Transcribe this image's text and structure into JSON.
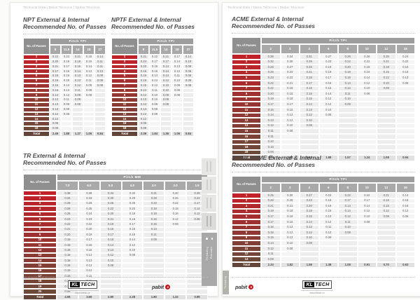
{
  "page_header": "Technical Data | Datos Técnicos | Dados Técnicos",
  "colors": {
    "accent_red": "#c12129",
    "gradient_start": "#c12129",
    "gradient_end": "#6d493a",
    "total_bg": "#624538",
    "header_gray": "#9d9d9d",
    "tab_gray": "#a8a8a8"
  },
  "side_tabs": {
    "label_en": "Threading",
    "label_es": "Roscado"
  },
  "footer": {
    "kl_box": "KL",
    "kl_word": "TECH",
    "kl_url": "www.kltech.cz",
    "pabit": "pabit",
    "pabit_mark": "e"
  },
  "tables": {
    "npt": {
      "title1": "NPT External & Internal",
      "title2": "Recommended No. of Passes",
      "band": "Pitch TPI",
      "passes_label": "No. of Passes",
      "total_label": "Total",
      "columns": [
        "8",
        "11.5",
        "14",
        "18",
        "27"
      ],
      "rows": [
        [
          "0.22",
          "0.23",
          "0.21",
          "0.18",
          "0.14"
        ],
        [
          "0.20",
          "0.19",
          "0.18",
          "0.15",
          "0.11"
        ],
        [
          "0.21",
          "0.17",
          "0.15",
          "0.13",
          "0.11"
        ],
        [
          "0.17",
          "0.16",
          "0.14",
          "0.13",
          "0.13"
        ],
        [
          "0.18",
          "0.15",
          "0.13",
          "0.12",
          "0.09"
        ],
        [
          "0.16",
          "0.15",
          "0.13",
          "0.11",
          "0.08"
        ],
        [
          "0.15",
          "0.13",
          "0.12",
          "0.09",
          "0.08"
        ],
        [
          "0.16",
          "0.13",
          "0.11",
          "0.09"
        ],
        [
          "0.14",
          "0.12",
          "0.09",
          "0.08"
        ],
        [
          "0.13",
          "0.11",
          "0.09"
        ],
        [
          "0.13",
          "0.09",
          "0.08"
        ],
        [
          "0.13",
          "0.08"
        ],
        [
          "0.12",
          "0.08"
        ],
        [
          "0.12"
        ],
        [
          "0.08"
        ],
        [
          "0.08"
        ]
      ],
      "totals": [
        "2.45",
        "1.88",
        "1.37",
        "1.05",
        "0.84"
      ]
    },
    "nptf": {
      "title1": "NPTF External & Internal",
      "title2": "Recommended No. of Passes",
      "band": "Pitch TPI",
      "passes_label": "No. of Passes",
      "total_label": "Total",
      "columns": [
        "8",
        "11.5",
        "14",
        "18",
        "27"
      ],
      "rows": [
        [
          "0.31",
          "0.22",
          "0.21",
          "0.17",
          "0.14"
        ],
        [
          "0.24",
          "0.17",
          "0.17",
          "0.14",
          "0.10"
        ],
        [
          "0.20",
          "0.16",
          "0.14",
          "0.13",
          "0.09"
        ],
        [
          "0.16",
          "0.16",
          "0.14",
          "0.12",
          "0.08"
        ],
        [
          "0.16",
          "0.14",
          "0.14",
          "0.11",
          "0.08"
        ],
        [
          "0.15",
          "0.13",
          "0.12",
          "0.10",
          "0.08"
        ],
        [
          "0.15",
          "0.12",
          "0.10",
          "0.09",
          "0.08"
        ],
        [
          "0.14",
          "0.11",
          "0.10",
          "0.08"
        ],
        [
          "0.14",
          "0.10",
          "0.09",
          "0.08"
        ],
        [
          "0.13",
          "0.10",
          "0.08"
        ],
        [
          "0.13",
          "0.09",
          "0.08"
        ],
        [
          "0.13",
          "0.08"
        ],
        [
          "0.12",
          "0.08"
        ],
        [
          "0.12"
        ],
        [
          "0.08"
        ],
        [
          "0.08"
        ]
      ],
      "totals": [
        "2.39",
        "1.84",
        "1.36",
        "1.05",
        "0.84"
      ]
    },
    "acme": {
      "title1": "ACME External & Internal",
      "title2": "Recommended No. of Passes",
      "band": "Pitch TPI",
      "passes_label": "No. of Passes",
      "total_label": "Total",
      "columns": [
        "2",
        "3",
        "4",
        "6",
        "8",
        "10",
        "12",
        "16"
      ],
      "rows": [
        [
          "0.36",
          "0.34",
          "0.31",
          "0.27",
          "0.26",
          "0.26",
          "0.25",
          "0.24"
        ],
        [
          "0.32",
          "0.30",
          "0.29",
          "0.23",
          "0.22",
          "0.22",
          "0.21",
          "0.22"
        ],
        [
          "0.28",
          "0.27",
          "0.25",
          "0.19",
          "0.20",
          "0.18",
          "0.18",
          "0.15"
        ],
        [
          "0.25",
          "0.23",
          "0.21",
          "0.18",
          "0.19",
          "0.16",
          "0.15",
          "0.15"
        ],
        [
          "0.23",
          "0.22",
          "0.18",
          "0.17",
          "0.16",
          "0.14",
          "0.12",
          "0.12"
        ],
        [
          "0.22",
          "0.21",
          "0.17",
          "0.16",
          "0.14",
          "0.12",
          "0.10",
          "0.06"
        ],
        [
          "0.22",
          "0.18",
          "0.16",
          "0.15",
          "0.12",
          "0.10",
          "0.08"
        ],
        [
          "0.20",
          "0.18",
          "0.15",
          "0.14",
          "0.11",
          "0.08"
        ],
        [
          "0.19",
          "0.18",
          "0.15",
          "0.12",
          "0.10"
        ],
        [
          "0.17",
          "0.17",
          "0.14",
          "0.12",
          "0.08"
        ],
        [
          "0.15",
          "0.15",
          "0.13",
          "0.10"
        ],
        [
          "0.14",
          "0.13",
          "0.12",
          "0.08"
        ],
        [
          "0.13",
          "0.12",
          "0.10"
        ],
        [
          "0.12",
          "0.10",
          "0.08"
        ],
        [
          "0.11",
          "0.08"
        ],
        [
          "0.11"
        ],
        [
          "0.10"
        ],
        [
          "0.10"
        ],
        [
          "0.08"
        ]
      ],
      "totals": [
        "3.46",
        "2.84",
        "2.42",
        "1.88",
        "1.57",
        "1.24",
        "1.08",
        "0.94"
      ]
    },
    "tr": {
      "title1": "TR External & Internal",
      "title2": "Recommended No. of Passes",
      "band": "Pitch MM",
      "passes_label": "No. of Passes",
      "total_label": "Total",
      "columns": [
        "7.0",
        "6.0",
        "5.0",
        "4.0",
        "3.0",
        "2.0",
        "1.5"
      ],
      "rows": [
        [
          "0.38",
          "0.38",
          "0.34",
          "0.32",
          "0.31",
          "0.30",
          "0.28"
        ],
        [
          "0.34",
          "0.33",
          "0.30",
          "0.28",
          "0.28",
          "0.26",
          "0.22"
        ],
        [
          "0.29",
          "0.28",
          "0.25",
          "0.25",
          "0.23",
          "0.22",
          "0.17"
        ],
        [
          "0.28",
          "0.26",
          "0.22",
          "0.20",
          "0.18",
          "0.18",
          "0.14"
        ],
        [
          "0.25",
          "0.24",
          "0.20",
          "0.18",
          "0.18",
          "0.16",
          "0.12"
        ],
        [
          "0.23",
          "0.23",
          "0.21",
          "0.16",
          "0.16",
          "0.12",
          "0.06"
        ],
        [
          "0.22",
          "0.22",
          "0.19",
          "0.17",
          "0.16",
          "0.08"
        ],
        [
          "0.21",
          "0.20",
          "0.16",
          "0.16",
          "0.13"
        ],
        [
          "0.20",
          "0.19",
          "0.17",
          "0.15",
          "0.11"
        ],
        [
          "0.19",
          "0.17",
          "0.16",
          "0.14",
          "0.08"
        ],
        [
          "0.19",
          "0.16",
          "0.14",
          "0.12"
        ],
        [
          "0.18",
          "0.15",
          "0.13",
          "0.10"
        ],
        [
          "0.16",
          "0.13",
          "0.12",
          "0.08"
        ],
        [
          "0.16",
          "0.13",
          "0.10"
        ],
        [
          "0.16",
          "0.12",
          "0.06"
        ],
        [
          "0.15",
          "0.12"
        ],
        [
          "0.15",
          "0.11"
        ],
        [
          "0.14",
          "0.11"
        ],
        [
          "0.12",
          "0.06"
        ],
        [
          "0.08"
        ]
      ],
      "totals": [
        "4.08",
        "3.59",
        "2.80",
        "2.28",
        "1.80",
        "1.32",
        "0.99"
      ]
    },
    "stub_acme": {
      "title1": "STUB ACME External & Internal",
      "title2": "Recommended No. of Passes",
      "band": "Pitch TPI",
      "passes_label": "No. of Passes",
      "total_label": "Total",
      "columns": [
        "2",
        "3",
        "4",
        "6",
        "8",
        "10",
        "12",
        "16"
      ],
      "rows": [
        [
          "0.25",
          "0.30",
          "0.27",
          "0.23",
          "0.22",
          "0.22",
          "0.21",
          "0.14"
        ],
        [
          "0.26",
          "0.28",
          "0.23",
          "0.18",
          "0.17",
          "0.17",
          "0.18",
          "0.16"
        ],
        [
          "0.21",
          "0.21",
          "0.20",
          "0.16",
          "0.14",
          "0.14",
          "0.15",
          "0.15"
        ],
        [
          "0.19",
          "0.18",
          "0.18",
          "0.15",
          "0.13",
          "0.12",
          "0.12",
          "0.12"
        ],
        [
          "0.17",
          "0.16",
          "0.15",
          "0.13",
          "0.12",
          "0.10",
          "0.08",
          "0.06"
        ],
        [
          "0.17",
          "0.15",
          "0.14",
          "0.12",
          "0.11",
          "0.08"
        ],
        [
          "0.16",
          "0.13",
          "0.13",
          "0.11",
          "0.10"
        ],
        [
          "0.15",
          "0.12",
          "0.12",
          "0.10",
          "0.08"
        ],
        [
          "0.15",
          "0.12",
          "0.10",
          "0.08"
        ],
        [
          "0.14",
          "0.10",
          "0.08"
        ],
        [
          "0.12",
          "0.08"
        ],
        [
          "0.11"
        ],
        [
          "0.08"
        ]
      ],
      "totals": [
        "2.33",
        "1.82",
        "1.58",
        "1.38",
        "1.08",
        "0.91",
        "0.70",
        "0.63"
      ]
    }
  }
}
